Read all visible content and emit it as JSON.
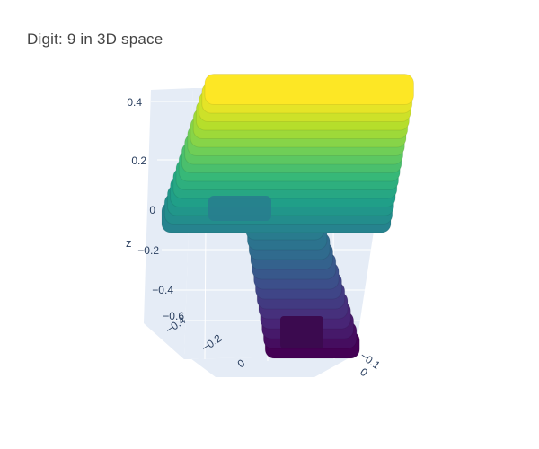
{
  "chart_data": {
    "type": "scatter3d",
    "title": "Digit: 9 in 3D space",
    "colorscale": "viridis",
    "colors": [
      "#440154",
      "#482878",
      "#3e4989",
      "#31688e",
      "#26828e",
      "#1f9e89",
      "#35b779",
      "#6ece58",
      "#b5de2b",
      "#fde725"
    ],
    "grid": true,
    "axes": {
      "z": {
        "title": "z",
        "ticks": [
          "0.4",
          "0.2",
          "0",
          "−0.2",
          "−0.4",
          "−0.6"
        ],
        "range": [
          -0.6,
          0.45
        ]
      },
      "x": {
        "title": "",
        "ticks": [
          "−0.4",
          "−0.2",
          "0"
        ]
      },
      "y": {
        "title": "",
        "ticks": [
          "−0.1",
          "0"
        ]
      }
    },
    "shape": {
      "description_free": true,
      "top_slab_z": [
        0.05,
        0.42
      ],
      "stem_z": [
        -0.62,
        0.0
      ]
    }
  }
}
